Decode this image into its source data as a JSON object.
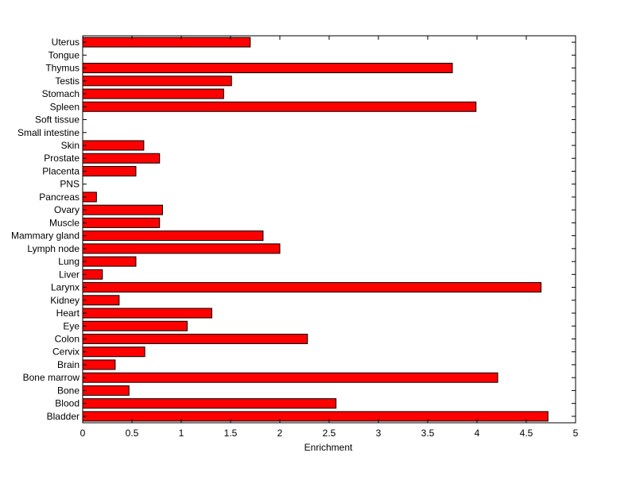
{
  "chart_data": {
    "type": "bar",
    "orientation": "horizontal",
    "title": "",
    "xlabel": "Enrichment",
    "ylabel": "",
    "xlim": [
      0,
      5
    ],
    "xticks": [
      "0",
      "0.5",
      "1",
      "1.5",
      "2",
      "2.5",
      "3",
      "3.5",
      "4",
      "4.5",
      "5"
    ],
    "grid": false,
    "bar_color": "#ff0000",
    "bar_edge_color": "#000000",
    "categories": [
      "Bladder",
      "Blood",
      "Bone",
      "Bone marrow",
      "Brain",
      "Cervix",
      "Colon",
      "Eye",
      "Heart",
      "Kidney",
      "Larynx",
      "Liver",
      "Lung",
      "Lymph node",
      "Mammary gland",
      "Muscle",
      "Ovary",
      "Pancreas",
      "PNS",
      "Placenta",
      "Prostate",
      "Skin",
      "Small intestine",
      "Soft tissue",
      "Spleen",
      "Stomach",
      "Testis",
      "Thymus",
      "Tongue",
      "Uterus"
    ],
    "values": [
      4.72,
      2.57,
      0.47,
      4.21,
      0.33,
      0.63,
      2.28,
      1.06,
      1.31,
      0.37,
      4.65,
      0.2,
      0.54,
      2.0,
      1.83,
      0.78,
      0.81,
      0.14,
      0,
      0.54,
      0.78,
      0.62,
      0,
      0,
      3.99,
      1.43,
      1.51,
      3.75,
      0,
      1.7
    ]
  }
}
